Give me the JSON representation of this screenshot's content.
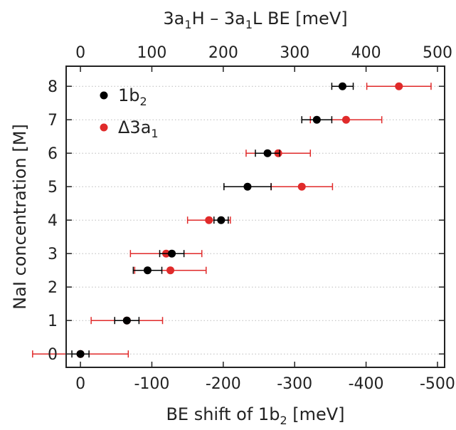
{
  "chart_data": {
    "type": "scatter",
    "xlabel_bottom": {
      "text": "BE shift of 1b",
      "sub": "2",
      "suffix": " [meV]"
    },
    "xlabel_top": {
      "parts": [
        {
          "t": "3a"
        },
        {
          "t": "1",
          "sub": true
        },
        {
          "t": "H – 3a"
        },
        {
          "t": "1",
          "sub": true
        },
        {
          "t": "L BE [meV]"
        }
      ]
    },
    "ylabel": "NaI concentration [M]",
    "xlim_bottom": [
      20,
      -510
    ],
    "xlim_top": [
      -20,
      510
    ],
    "ylim": [
      -0.4,
      8.6
    ],
    "xticks_bottom": [
      0,
      -100,
      -200,
      -300,
      -400,
      -500
    ],
    "xtick_labels_bottom": [
      "0",
      "-100",
      "-200",
      "-300",
      "-400",
      "-500"
    ],
    "xticks_top": [
      0,
      100,
      200,
      300,
      400,
      500
    ],
    "xtick_labels_top": [
      "0",
      "100",
      "200",
      "300",
      "400",
      "500"
    ],
    "yticks": [
      0,
      1,
      2,
      3,
      4,
      5,
      6,
      7,
      8
    ],
    "ytick_labels": [
      "0",
      "1",
      "2",
      "3",
      "4",
      "5",
      "6",
      "7",
      "8"
    ],
    "grid": "horizontal-dotted",
    "legend": "top-left",
    "series": [
      {
        "name": "1b",
        "name_sub": "2",
        "axis": "bottom",
        "color": "#000000",
        "points": [
          {
            "y": 0,
            "x": 0,
            "err": 12
          },
          {
            "y": 1,
            "x": -65,
            "err": 17
          },
          {
            "y": 2.5,
            "x": -94,
            "err": 20
          },
          {
            "y": 3,
            "x": -128,
            "err": 17
          },
          {
            "y": 4,
            "x": -197,
            "err": 10
          },
          {
            "y": 5,
            "x": -234,
            "err": 33
          },
          {
            "y": 6,
            "x": -262,
            "err": 17
          },
          {
            "y": 7,
            "x": -331,
            "err": 21
          },
          {
            "y": 8,
            "x": -367,
            "err": 15
          }
        ]
      },
      {
        "name": "Δ3a",
        "name_sub": "1",
        "axis": "top",
        "color": "#e02a2a",
        "points": [
          {
            "y": 0,
            "x": 0,
            "err": 67
          },
          {
            "y": 1,
            "x": 65,
            "err": 50
          },
          {
            "y": 2.5,
            "x": 126,
            "err": 50
          },
          {
            "y": 3,
            "x": 120,
            "err": 50
          },
          {
            "y": 4,
            "x": 180,
            "err": 30
          },
          {
            "y": 5,
            "x": 310,
            "err": 43
          },
          {
            "y": 6,
            "x": 277,
            "err": 45
          },
          {
            "y": 7,
            "x": 372,
            "err": 50
          },
          {
            "y": 8,
            "x": 446,
            "err": 45
          }
        ]
      }
    ]
  }
}
